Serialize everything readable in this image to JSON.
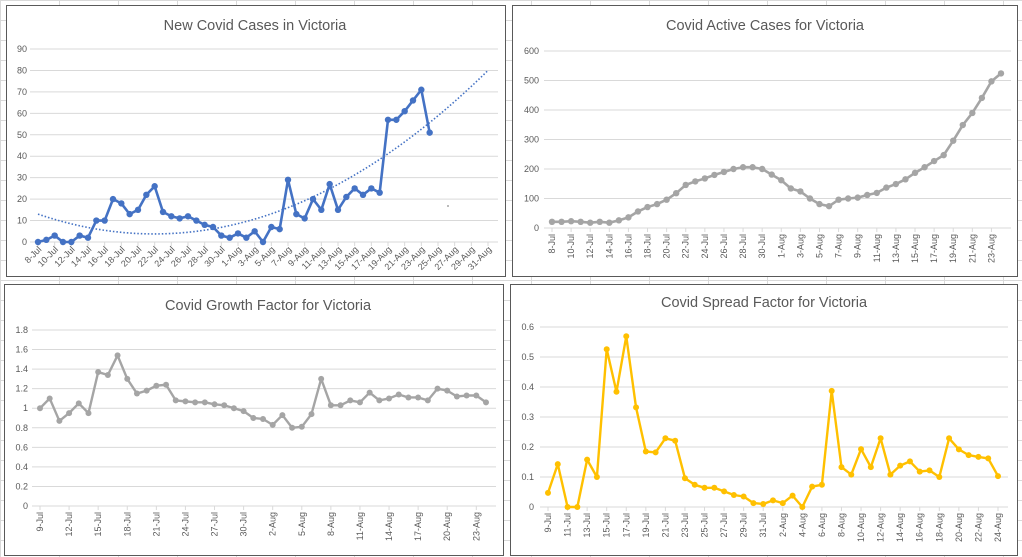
{
  "chart_data": [
    {
      "id": "new-cases",
      "type": "line",
      "title": "New Covid Cases in Victoria",
      "xlabel": "",
      "ylabel": "",
      "ylim": [
        0,
        90
      ],
      "yticks": [
        0,
        10,
        20,
        30,
        40,
        50,
        60,
        70,
        80,
        90
      ],
      "grid": true,
      "legend": "none",
      "color": "#4472C4",
      "categories": [
        "8-Jul",
        "9-Jul",
        "10-Jul",
        "11-Jul",
        "12-Jul",
        "13-Jul",
        "14-Jul",
        "15-Jul",
        "16-Jul",
        "17-Jul",
        "18-Jul",
        "19-Jul",
        "20-Jul",
        "21-Jul",
        "22-Jul",
        "23-Jul",
        "24-Jul",
        "25-Jul",
        "26-Jul",
        "27-Jul",
        "28-Jul",
        "29-Jul",
        "30-Jul",
        "31-Jul",
        "1-Aug",
        "2-Aug",
        "3-Aug",
        "4-Aug",
        "5-Aug",
        "6-Aug",
        "7-Aug",
        "8-Aug",
        "9-Aug",
        "10-Aug",
        "11-Aug",
        "12-Aug",
        "13-Aug",
        "14-Aug",
        "15-Aug",
        "16-Aug",
        "17-Aug",
        "18-Aug",
        "19-Aug",
        "20-Aug",
        "21-Aug",
        "22-Aug",
        "23-Aug",
        "24-Aug",
        "25-Aug",
        "26-Aug",
        "27-Aug",
        "28-Aug",
        "29-Aug",
        "30-Aug",
        "31-Aug"
      ],
      "tick_labels": [
        "8-Jul",
        "10-Jul",
        "12-Jul",
        "14-Jul",
        "16-Jul",
        "18-Jul",
        "20-Jul",
        "22-Jul",
        "24-Jul",
        "26-Jul",
        "28-Jul",
        "30-Jul",
        "1-Aug",
        "3-Aug",
        "5-Aug",
        "7-Aug",
        "9-Aug",
        "11-Aug",
        "13-Aug",
        "15-Aug",
        "17-Aug",
        "19-Aug",
        "21-Aug",
        "23-Aug",
        "25-Aug",
        "27-Aug",
        "29-Aug",
        "31-Aug"
      ],
      "tick_every": 2,
      "series": [
        {
          "name": "New cases",
          "values": [
            0,
            1,
            3,
            0,
            0,
            3,
            2,
            10,
            10,
            20,
            18,
            13,
            15,
            22,
            26,
            14,
            12,
            11,
            12,
            10,
            8,
            7,
            3,
            2,
            4,
            2,
            5,
            0,
            7,
            6,
            29,
            13,
            11,
            20,
            15,
            27,
            15,
            21,
            25,
            22,
            25,
            23,
            57,
            57,
            61,
            66,
            71,
            51
          ]
        }
      ],
      "trendline": {
        "type": "polynomial",
        "style": "dotted",
        "start_value": 13,
        "end_value": 80
      }
    },
    {
      "id": "active-cases",
      "type": "line",
      "title": "Covid Active Cases for Victoria",
      "xlabel": "",
      "ylabel": "",
      "ylim": [
        0,
        600
      ],
      "yticks": [
        0,
        100,
        200,
        300,
        400,
        500,
        600
      ],
      "grid": true,
      "legend": "none",
      "color": "#A5A5A5",
      "categories": [
        "8-Jul",
        "9-Jul",
        "10-Jul",
        "11-Jul",
        "12-Jul",
        "13-Jul",
        "14-Jul",
        "15-Jul",
        "16-Jul",
        "17-Jul",
        "18-Jul",
        "19-Jul",
        "20-Jul",
        "21-Jul",
        "22-Jul",
        "23-Jul",
        "24-Jul",
        "25-Jul",
        "26-Jul",
        "27-Jul",
        "28-Jul",
        "29-Jul",
        "30-Jul",
        "31-Jul",
        "1-Aug",
        "2-Aug",
        "3-Aug",
        "4-Aug",
        "5-Aug",
        "6-Aug",
        "7-Aug",
        "8-Aug",
        "9-Aug",
        "10-Aug",
        "11-Aug",
        "12-Aug",
        "13-Aug",
        "14-Aug",
        "15-Aug",
        "16-Aug",
        "17-Aug",
        "18-Aug",
        "19-Aug",
        "20-Aug",
        "21-Aug",
        "22-Aug",
        "23-Aug",
        "24-Aug"
      ],
      "tick_labels": [
        "8-Jul",
        "10-Jul",
        "12-Jul",
        "14-Jul",
        "16-Jul",
        "18-Jul",
        "20-Jul",
        "22-Jul",
        "24-Jul",
        "26-Jul",
        "28-Jul",
        "30-Jul",
        "1-Aug",
        "3-Aug",
        "5-Aug",
        "7-Aug",
        "9-Aug",
        "11-Aug",
        "13-Aug",
        "15-Aug",
        "17-Aug",
        "19-Aug",
        "21-Aug",
        "23-Aug"
      ],
      "tick_every": 2,
      "series": [
        {
          "name": "Active cases",
          "values": [
            21,
            21,
            23,
            21,
            18,
            21,
            18,
            26,
            36,
            56,
            71,
            81,
            96,
            118,
            146,
            158,
            168,
            180,
            190,
            200,
            206,
            206,
            200,
            181,
            162,
            134,
            124,
            100,
            81,
            74,
            96,
            100,
            103,
            112,
            119,
            137,
            149,
            165,
            187,
            206,
            227,
            247,
            296,
            349,
            390,
            441,
            497,
            524
          ]
        }
      ]
    },
    {
      "id": "growth-factor",
      "type": "line",
      "title": "Covid Growth Factor for Victoria",
      "xlabel": "",
      "ylabel": "",
      "ylim": [
        0,
        1.8
      ],
      "yticks": [
        "0",
        "0.2",
        "0.4",
        "0.6",
        "0.8",
        "1",
        "1.2",
        "1.4",
        "1.6",
        "1.8"
      ],
      "grid": true,
      "legend": "none",
      "color": "#A5A5A5",
      "categories": [
        "9-Jul",
        "10-Jul",
        "11-Jul",
        "12-Jul",
        "13-Jul",
        "14-Jul",
        "15-Jul",
        "16-Jul",
        "17-Jul",
        "18-Jul",
        "19-Jul",
        "20-Jul",
        "21-Jul",
        "22-Jul",
        "23-Jul",
        "24-Jul",
        "25-Jul",
        "26-Jul",
        "27-Jul",
        "28-Jul",
        "29-Jul",
        "30-Jul",
        "31-Jul",
        "1-Aug",
        "2-Aug",
        "3-Aug",
        "4-Aug",
        "5-Aug",
        "6-Aug",
        "7-Aug",
        "8-Aug",
        "9-Aug",
        "10-Aug",
        "11-Aug",
        "12-Aug",
        "13-Aug",
        "14-Aug",
        "15-Aug",
        "16-Aug",
        "17-Aug",
        "18-Aug",
        "19-Aug",
        "20-Aug",
        "21-Aug",
        "22-Aug",
        "23-Aug",
        "24-Aug"
      ],
      "tick_labels": [
        "9-Jul",
        "12-Jul",
        "15-Jul",
        "18-Jul",
        "21-Jul",
        "24-Jul",
        "27-Jul",
        "30-Jul",
        "2-Aug",
        "5-Aug",
        "8-Aug",
        "11-Aug",
        "14-Aug",
        "17-Aug",
        "20-Aug",
        "23-Aug"
      ],
      "tick_every": 3,
      "series": [
        {
          "name": "Growth factor",
          "values": [
            1.0,
            1.1,
            0.87,
            0.95,
            1.05,
            0.95,
            1.37,
            1.34,
            1.54,
            1.3,
            1.15,
            1.18,
            1.23,
            1.24,
            1.08,
            1.07,
            1.06,
            1.06,
            1.04,
            1.03,
            1.0,
            0.97,
            0.9,
            0.89,
            0.83,
            0.93,
            0.8,
            0.81,
            0.94,
            1.3,
            1.03,
            1.03,
            1.08,
            1.06,
            1.16,
            1.08,
            1.1,
            1.14,
            1.11,
            1.11,
            1.08,
            1.2,
            1.18,
            1.12,
            1.13,
            1.13,
            1.06
          ]
        }
      ]
    },
    {
      "id": "spread-factor",
      "type": "line",
      "title": "Covid Spread Factor for Victoria",
      "xlabel": "",
      "ylabel": "",
      "ylim": [
        0,
        0.6
      ],
      "yticks": [
        "0",
        "0.1",
        "0.2",
        "0.3",
        "0.4",
        "0.5",
        "0.6"
      ],
      "grid": true,
      "legend": "none",
      "color": "#FFC000",
      "categories": [
        "9-Jul",
        "10-Jul",
        "11-Jul",
        "12-Jul",
        "13-Jul",
        "14-Jul",
        "15-Jul",
        "16-Jul",
        "17-Jul",
        "18-Jul",
        "19-Jul",
        "20-Jul",
        "21-Jul",
        "22-Jul",
        "23-Jul",
        "24-Jul",
        "25-Jul",
        "26-Jul",
        "27-Jul",
        "28-Jul",
        "29-Jul",
        "30-Jul",
        "31-Jul",
        "1-Aug",
        "2-Aug",
        "3-Aug",
        "4-Aug",
        "5-Aug",
        "6-Aug",
        "7-Aug",
        "8-Aug",
        "9-Aug",
        "10-Aug",
        "11-Aug",
        "12-Aug",
        "13-Aug",
        "14-Aug",
        "15-Aug",
        "16-Aug",
        "17-Aug",
        "18-Aug",
        "19-Aug",
        "20-Aug",
        "21-Aug",
        "22-Aug",
        "23-Aug",
        "24-Aug"
      ],
      "tick_labels": [
        "9-Jul",
        "11-Jul",
        "13-Jul",
        "15-Jul",
        "17-Jul",
        "19-Jul",
        "21-Jul",
        "23-Jul",
        "25-Jul",
        "27-Jul",
        "29-Jul",
        "31-Jul",
        "2-Aug",
        "4-Aug",
        "6-Aug",
        "8-Aug",
        "10-Aug",
        "12-Aug",
        "14-Aug",
        "16-Aug",
        "18-Aug",
        "20-Aug",
        "22-Aug",
        "24-Aug"
      ],
      "tick_every": 2,
      "series": [
        {
          "name": "Spread factor",
          "values": [
            0.047,
            0.143,
            0,
            0,
            0.158,
            0.1,
            0.526,
            0.384,
            0.569,
            0.332,
            0.185,
            0.182,
            0.229,
            0.221,
            0.096,
            0.074,
            0.064,
            0.064,
            0.052,
            0.04,
            0.035,
            0.013,
            0.01,
            0.022,
            0.013,
            0.038,
            0,
            0.068,
            0.074,
            0.387,
            0.133,
            0.108,
            0.193,
            0.133,
            0.229,
            0.108,
            0.138,
            0.152,
            0.118,
            0.122,
            0.1,
            0.229,
            0.192,
            0.173,
            0.167,
            0.162,
            0.103
          ]
        }
      ]
    }
  ]
}
